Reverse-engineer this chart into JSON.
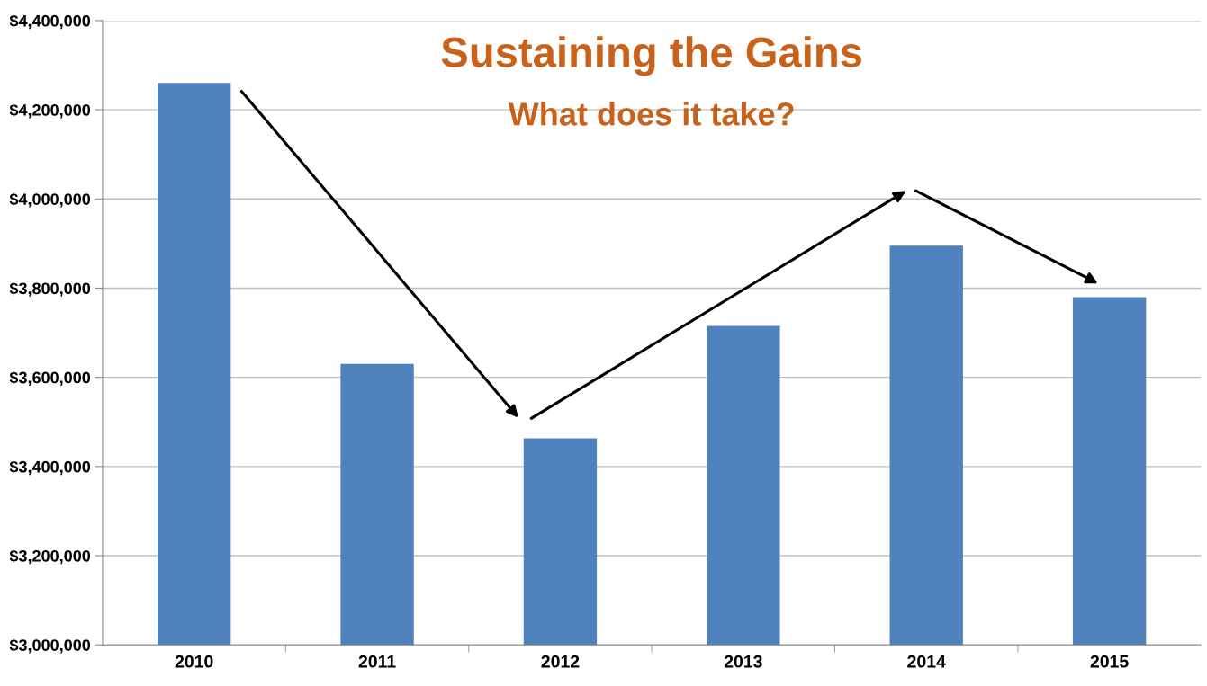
{
  "chart_data": {
    "type": "bar",
    "title": "Sustaining the Gains",
    "subtitle": "What does it take?",
    "categories": [
      "2010",
      "2011",
      "2012",
      "2013",
      "2014",
      "2015"
    ],
    "values": [
      4260000,
      3630000,
      3463000,
      3715000,
      3895000,
      3780000
    ],
    "color": "#4f81bd",
    "ylim": [
      3000000,
      4400000
    ],
    "yticks": [
      {
        "value": 3000000,
        "label": "$3,000,000"
      },
      {
        "value": 3200000,
        "label": "$3,200,000"
      },
      {
        "value": 3400000,
        "label": "$3,400,000"
      },
      {
        "value": 3600000,
        "label": "$3,600,000"
      },
      {
        "value": 3800000,
        "label": "$3,800,000"
      },
      {
        "value": 4000000,
        "label": "$4,000,000"
      },
      {
        "value": 4200000,
        "label": "$4,200,000"
      },
      {
        "value": 4400000,
        "label": "$4,400,000"
      }
    ],
    "grid": "y",
    "legend": false
  }
}
